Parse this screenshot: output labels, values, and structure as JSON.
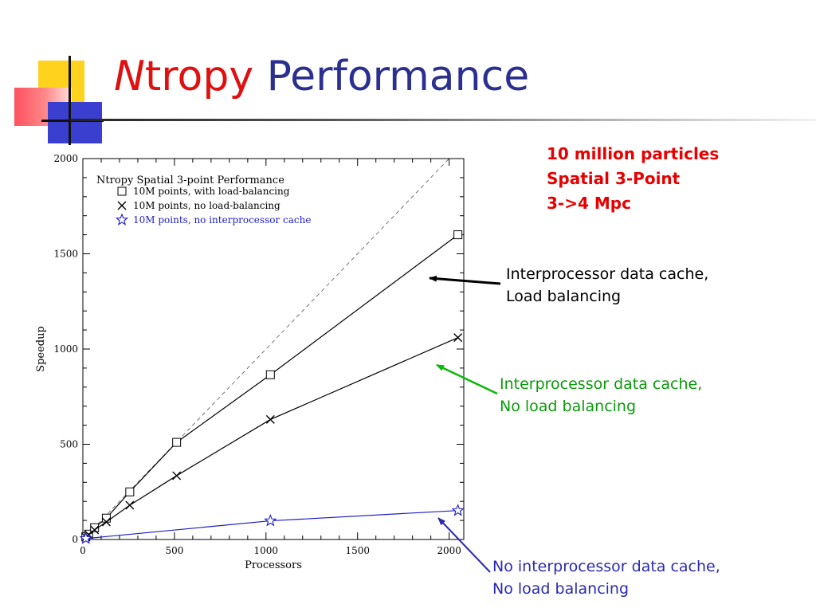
{
  "slide": {
    "title_italic": "N",
    "title_mid": "tropy",
    "title_end": "Performance",
    "note_lines": [
      "10 million particles",
      "Spatial 3-Point",
      "3->4 Mpc"
    ]
  },
  "annotations": [
    {
      "lines": [
        "Interprocessor data cache,",
        "Load balancing"
      ],
      "color": "#000000"
    },
    {
      "lines": [
        "Interprocessor data cache,",
        "No load balancing"
      ],
      "color": "#0a9a0a"
    },
    {
      "lines": [
        "No interprocessor data cache,",
        "No load balancing"
      ],
      "color": "#2a2ab0"
    }
  ],
  "chart_data": {
    "type": "line",
    "title": "Ntropy Spatial 3-point Performance",
    "xlabel": "Processors",
    "ylabel": "Speedup",
    "xlim": [
      0,
      2080
    ],
    "ylim": [
      0,
      2000
    ],
    "xticks": [
      0,
      500,
      1000,
      1500,
      2000
    ],
    "yticks": [
      0,
      500,
      1000,
      1500,
      2000
    ],
    "grid": false,
    "legend_position": "top-left",
    "reference_line": {
      "style": "dashed",
      "x": [
        0,
        2048
      ],
      "y": [
        0,
        2048
      ]
    },
    "series": [
      {
        "name": "10M points, with load-balancing",
        "marker": "square",
        "color": "#000000",
        "x": [
          16,
          32,
          64,
          128,
          256,
          512,
          1024,
          2048
        ],
        "y": [
          14,
          28,
          62,
          112,
          250,
          510,
          865,
          1600
        ]
      },
      {
        "name": "10M points, no load-balancing",
        "marker": "x",
        "color": "#000000",
        "x": [
          16,
          32,
          64,
          128,
          256,
          512,
          1024,
          2048
        ],
        "y": [
          12,
          25,
          50,
          92,
          180,
          335,
          630,
          1060
        ]
      },
      {
        "name": "10M points, no interprocessor cache",
        "marker": "star",
        "color": "#1c1cc8",
        "x": [
          16,
          1024,
          2048
        ],
        "y": [
          5,
          98,
          152
        ]
      }
    ]
  }
}
